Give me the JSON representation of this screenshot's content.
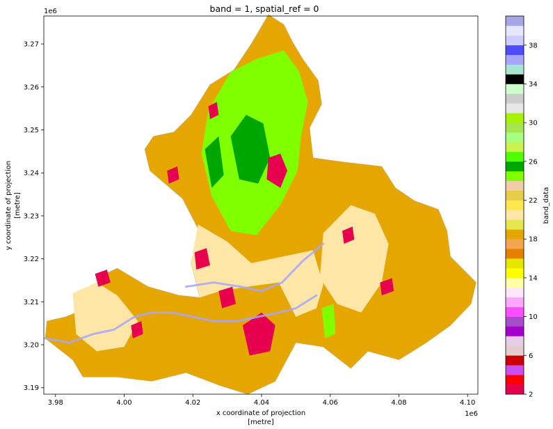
{
  "chart_data": {
    "type": "heatmap",
    "title": "band = 1, spatial_ref = 0",
    "xlabel": "x coordinate of projection",
    "xlabel_unit": "[metre]",
    "ylabel": "y coordinate of projection",
    "ylabel_unit": "[metre]",
    "x_offset_label": "1e6",
    "y_offset_label": "1e6",
    "xlim": [
      3.9766,
      4.103
    ],
    "ylim": [
      3.1885,
      3.2765
    ],
    "x_ticks": [
      3.98,
      4.0,
      4.02,
      4.04,
      4.06,
      4.08,
      4.1
    ],
    "x_tick_labels": [
      "3.98",
      "4.00",
      "4.02",
      "4.04",
      "4.06",
      "4.08",
      "4.10"
    ],
    "y_ticks": [
      3.19,
      3.2,
      3.21,
      3.22,
      3.23,
      3.24,
      3.25,
      3.26,
      3.27
    ],
    "y_tick_labels": [
      "3.19",
      "3.20",
      "3.21",
      "3.22",
      "3.23",
      "3.24",
      "3.25",
      "3.26",
      "3.27"
    ],
    "colorbar": {
      "label": "band_data",
      "range": [
        2,
        41
      ],
      "tick_values": [
        2,
        6,
        10,
        14,
        18,
        22,
        26,
        30,
        34,
        38
      ],
      "tick_labels": [
        "2",
        "6",
        "10",
        "14",
        "18",
        "22",
        "26",
        "30",
        "34",
        "38"
      ],
      "classes": [
        {
          "value": 2,
          "color": "#e6004d"
        },
        {
          "value": 3,
          "color": "#ff0000"
        },
        {
          "value": 4,
          "color": "#cc4df2"
        },
        {
          "value": 5,
          "color": "#cc0000"
        },
        {
          "value": 6,
          "color": "#e6cccc"
        },
        {
          "value": 7,
          "color": "#e6cce6"
        },
        {
          "value": 8,
          "color": "#a600cc"
        },
        {
          "value": 9,
          "color": "#a64dcc"
        },
        {
          "value": 10,
          "color": "#ff4dff"
        },
        {
          "value": 11,
          "color": "#ffa6ff"
        },
        {
          "value": 12,
          "color": "#ffe6ff"
        },
        {
          "value": 13,
          "color": "#ffffa8"
        },
        {
          "value": 14,
          "color": "#ffff00"
        },
        {
          "value": 15,
          "color": "#e6e600"
        },
        {
          "value": 16,
          "color": "#e68000"
        },
        {
          "value": 17,
          "color": "#f2a64d"
        },
        {
          "value": 18,
          "color": "#e6a600"
        },
        {
          "value": 19,
          "color": "#e6e64d"
        },
        {
          "value": 20,
          "color": "#ffe6a6"
        },
        {
          "value": 21,
          "color": "#ffe64d"
        },
        {
          "value": 22,
          "color": "#e6cc4d"
        },
        {
          "value": 23,
          "color": "#f2cca6"
        },
        {
          "value": 24,
          "color": "#80ff00"
        },
        {
          "value": 25,
          "color": "#00a600"
        },
        {
          "value": 26,
          "color": "#4dff00"
        },
        {
          "value": 27,
          "color": "#ccf24d"
        },
        {
          "value": 28,
          "color": "#a6ff80"
        },
        {
          "value": 29,
          "color": "#a6e64d"
        },
        {
          "value": 30,
          "color": "#a6f200"
        },
        {
          "value": 31,
          "color": "#e6e6e6"
        },
        {
          "value": 32,
          "color": "#cccccc"
        },
        {
          "value": 33,
          "color": "#ccffcc"
        },
        {
          "value": 34,
          "color": "#000000"
        },
        {
          "value": 35,
          "color": "#a6e6cc"
        },
        {
          "value": 36,
          "color": "#a6a6ff"
        },
        {
          "value": 37,
          "color": "#4d4dff"
        },
        {
          "value": 38,
          "color": "#ccccff"
        },
        {
          "value": 39,
          "color": "#e6e6ff"
        },
        {
          "value": 40,
          "color": "#a6a6e6"
        }
      ]
    },
    "regions": [
      {
        "name": "territory",
        "value": 18,
        "outline": [
          [
            3.9775,
            3.2055
          ],
          [
            3.983,
            3.2065
          ],
          [
            3.989,
            3.2085
          ],
          [
            3.9945,
            3.2165
          ],
          [
            3.998,
            3.2178
          ],
          [
            4.007,
            3.2135
          ],
          [
            4.016,
            3.2115
          ],
          [
            4.022,
            3.211
          ],
          [
            4.0195,
            3.219
          ],
          [
            4.0215,
            3.227
          ],
          [
            4.017,
            3.234
          ],
          [
            4.0075,
            3.2405
          ],
          [
            4.006,
            3.2455
          ],
          [
            4.0085,
            3.2485
          ],
          [
            4.0145,
            3.2495
          ],
          [
            4.0195,
            3.2535
          ],
          [
            4.025,
            3.2605
          ],
          [
            4.032,
            3.264
          ],
          [
            4.037,
            3.27
          ],
          [
            4.042,
            3.2768
          ],
          [
            4.0465,
            3.2745
          ],
          [
            4.049,
            3.2705
          ],
          [
            4.052,
            3.2665
          ],
          [
            4.0565,
            3.2615
          ],
          [
            4.0575,
            3.256
          ],
          [
            4.054,
            3.2505
          ],
          [
            4.055,
            3.2435
          ],
          [
            4.064,
            3.2425
          ],
          [
            4.075,
            3.2415
          ],
          [
            4.079,
            3.2365
          ],
          [
            4.0845,
            3.2335
          ],
          [
            4.0915,
            3.2315
          ],
          [
            4.094,
            3.2265
          ],
          [
            4.095,
            3.2205
          ],
          [
            4.1025,
            3.2145
          ],
          [
            4.101,
            3.2095
          ],
          [
            4.095,
            3.2045
          ],
          [
            4.088,
            3.2005
          ],
          [
            4.08,
            3.1965
          ],
          [
            4.071,
            3.1985
          ],
          [
            4.066,
            3.1945
          ],
          [
            4.058,
            3.1995
          ],
          [
            4.05,
            3.2005
          ],
          [
            4.044,
            3.1915
          ],
          [
            4.036,
            3.1885
          ],
          [
            4.028,
            3.1905
          ],
          [
            4.018,
            3.1935
          ],
          [
            4.008,
            3.1915
          ],
          [
            3.998,
            3.1925
          ],
          [
            3.988,
            3.1925
          ],
          [
            3.985,
            3.1965
          ],
          [
            3.977,
            3.2015
          ],
          [
            3.9775,
            3.2055
          ]
        ]
      },
      {
        "name": "urban-plain",
        "value": 20,
        "outline": [
          [
            4.0195,
            3.219
          ],
          [
            4.0215,
            3.228
          ],
          [
            4.03,
            3.224
          ],
          [
            4.037,
            3.219
          ],
          [
            4.046,
            3.2205
          ],
          [
            4.055,
            3.222
          ],
          [
            4.058,
            3.214
          ],
          [
            4.056,
            3.2085
          ],
          [
            4.05,
            3.2065
          ],
          [
            4.045,
            3.2145
          ],
          [
            4.036,
            3.2135
          ],
          [
            4.028,
            3.2125
          ],
          [
            4.022,
            3.211
          ],
          [
            4.0195,
            3.219
          ]
        ]
      },
      {
        "name": "east-plain",
        "value": 20,
        "outline": [
          [
            4.058,
            3.226
          ],
          [
            4.066,
            3.2325
          ],
          [
            4.073,
            3.2305
          ],
          [
            4.077,
            3.2235
          ],
          [
            4.075,
            3.2145
          ],
          [
            4.069,
            3.2075
          ],
          [
            4.062,
            3.2095
          ],
          [
            4.057,
            3.2155
          ],
          [
            4.058,
            3.226
          ]
        ]
      },
      {
        "name": "south-west-plain",
        "value": 20,
        "outline": [
          [
            3.985,
            3.212
          ],
          [
            3.992,
            3.2145
          ],
          [
            3.998,
            3.2115
          ],
          [
            4.004,
            3.2055
          ],
          [
            4.0,
            3.1995
          ],
          [
            3.992,
            3.1985
          ],
          [
            3.986,
            3.2025
          ],
          [
            3.985,
            3.212
          ]
        ]
      },
      {
        "name": "forest-core",
        "value": 24,
        "outline": [
          [
            4.0245,
            3.2545
          ],
          [
            4.031,
            3.2635
          ],
          [
            4.0385,
            3.2665
          ],
          [
            4.0465,
            3.2685
          ],
          [
            4.051,
            3.2635
          ],
          [
            4.0535,
            3.2565
          ],
          [
            4.0515,
            3.2485
          ],
          [
            4.0505,
            3.2405
          ],
          [
            4.0455,
            3.2325
          ],
          [
            4.0385,
            3.2255
          ],
          [
            4.031,
            3.2265
          ],
          [
            4.0255,
            3.2345
          ],
          [
            4.0225,
            3.2445
          ],
          [
            4.0245,
            3.2545
          ]
        ]
      },
      {
        "name": "forest-dense",
        "value": 25,
        "outline": [
          [
            4.031,
            3.2485
          ],
          [
            4.0355,
            3.2535
          ],
          [
            4.0405,
            3.2515
          ],
          [
            4.0425,
            3.2435
          ],
          [
            4.039,
            3.2375
          ],
          [
            4.0335,
            3.2385
          ],
          [
            4.031,
            3.2485
          ]
        ]
      },
      {
        "name": "forest-strip",
        "value": 25,
        "outline": [
          [
            4.0235,
            3.2455
          ],
          [
            4.0275,
            3.2485
          ],
          [
            4.029,
            3.2395
          ],
          [
            4.0255,
            3.2365
          ],
          [
            4.0235,
            3.2455
          ]
        ]
      },
      {
        "name": "forest-south",
        "value": 24,
        "outline": [
          [
            4.0575,
            3.2085
          ],
          [
            4.061,
            3.2095
          ],
          [
            4.0615,
            3.2025
          ],
          [
            4.0585,
            3.2015
          ],
          [
            4.0575,
            3.2085
          ]
        ]
      },
      {
        "name": "town-1",
        "value": 2,
        "outline": [
          [
            4.042,
            3.2435
          ],
          [
            4.0455,
            3.2445
          ],
          [
            4.0475,
            3.2405
          ],
          [
            4.0455,
            3.2365
          ],
          [
            4.0415,
            3.2385
          ],
          [
            4.042,
            3.2435
          ]
        ]
      },
      {
        "name": "town-2",
        "value": 2,
        "outline": [
          [
            4.0345,
            3.2045
          ],
          [
            4.04,
            3.2075
          ],
          [
            4.044,
            3.2045
          ],
          [
            4.0425,
            3.1985
          ],
          [
            4.0365,
            3.1975
          ],
          [
            4.0345,
            3.2045
          ]
        ]
      },
      {
        "name": "town-3",
        "value": 2,
        "outline": [
          [
            4.0205,
            3.2215
          ],
          [
            4.024,
            3.2225
          ],
          [
            4.025,
            3.2185
          ],
          [
            4.021,
            3.2175
          ],
          [
            4.0205,
            3.2215
          ]
        ]
      },
      {
        "name": "town-4",
        "value": 2,
        "outline": [
          [
            4.0245,
            3.2555
          ],
          [
            4.027,
            3.2565
          ],
          [
            4.0275,
            3.2535
          ],
          [
            4.025,
            3.2525
          ],
          [
            4.0245,
            3.2555
          ]
        ]
      },
      {
        "name": "town-5",
        "value": 2,
        "outline": [
          [
            4.0125,
            3.2405
          ],
          [
            4.0155,
            3.2415
          ],
          [
            4.016,
            3.2385
          ],
          [
            4.013,
            3.2375
          ],
          [
            4.0125,
            3.2405
          ]
        ]
      },
      {
        "name": "town-6",
        "value": 2,
        "outline": [
          [
            3.9915,
            3.2165
          ],
          [
            3.995,
            3.2175
          ],
          [
            3.996,
            3.2145
          ],
          [
            3.9925,
            3.2135
          ],
          [
            3.9915,
            3.2165
          ]
        ]
      },
      {
        "name": "town-7",
        "value": 2,
        "outline": [
          [
            4.0745,
            3.2145
          ],
          [
            4.078,
            3.2155
          ],
          [
            4.0785,
            3.2125
          ],
          [
            4.075,
            3.2115
          ],
          [
            4.0745,
            3.2145
          ]
        ]
      },
      {
        "name": "town-8",
        "value": 2,
        "outline": [
          [
            4.0635,
            3.2265
          ],
          [
            4.0665,
            3.2275
          ],
          [
            4.067,
            3.2245
          ],
          [
            4.064,
            3.2235
          ],
          [
            4.0635,
            3.2265
          ]
        ]
      },
      {
        "name": "town-9",
        "value": 2,
        "outline": [
          [
            4.0275,
            3.2125
          ],
          [
            4.0315,
            3.2135
          ],
          [
            4.0325,
            3.2095
          ],
          [
            4.0285,
            3.2085
          ],
          [
            4.0275,
            3.2125
          ]
        ]
      },
      {
        "name": "town-10",
        "value": 2,
        "outline": [
          [
            4.002,
            3.2045
          ],
          [
            4.005,
            3.2055
          ],
          [
            4.0055,
            3.2025
          ],
          [
            4.0025,
            3.2015
          ],
          [
            4.002,
            3.2045
          ]
        ]
      }
    ],
    "rivers": [
      {
        "name": "main-river",
        "value": 36,
        "points": [
          [
            3.977,
            3.2015
          ],
          [
            3.984,
            3.2005
          ],
          [
            3.991,
            3.2025
          ],
          [
            3.997,
            3.2035
          ],
          [
            4.003,
            3.2065
          ],
          [
            4.008,
            3.2075
          ],
          [
            4.014,
            3.2075
          ],
          [
            4.02,
            3.2065
          ],
          [
            4.026,
            3.2055
          ],
          [
            4.033,
            3.2055
          ],
          [
            4.039,
            3.2065
          ],
          [
            4.045,
            3.2075
          ],
          [
            4.05,
            3.2085
          ],
          [
            4.056,
            3.2115
          ]
        ]
      },
      {
        "name": "north-river",
        "value": 36,
        "points": [
          [
            4.018,
            3.2135
          ],
          [
            4.026,
            3.2145
          ],
          [
            4.034,
            3.2135
          ],
          [
            4.04,
            3.2125
          ],
          [
            4.046,
            3.2145
          ],
          [
            4.052,
            3.2195
          ],
          [
            4.058,
            3.2235
          ]
        ]
      }
    ]
  }
}
